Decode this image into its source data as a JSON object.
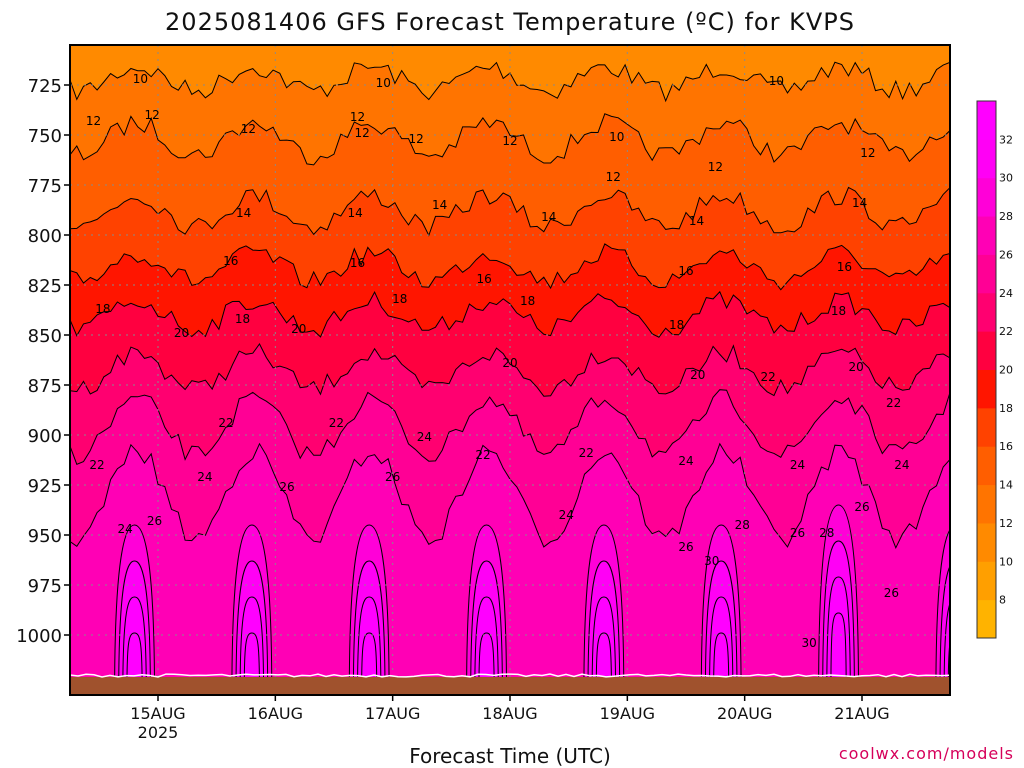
{
  "chart_data": {
    "type": "heatmap",
    "title": "2025081406 GFS Forecast Temperature (ºC) for KVPS",
    "xlabel": "Forecast Time (UTC)",
    "credit": "coolwx.com/models",
    "y_ticks": [
      725,
      750,
      775,
      800,
      825,
      850,
      875,
      900,
      925,
      950,
      975,
      1000
    ],
    "ylim": [
      1030,
      705
    ],
    "x_ticks": [
      {
        "label": "15AUG",
        "sublabel": "2025",
        "x": 15
      },
      {
        "label": "16AUG",
        "sublabel": "",
        "x": 16
      },
      {
        "label": "17AUG",
        "sublabel": "",
        "x": 17
      },
      {
        "label": "18AUG",
        "sublabel": "",
        "x": 18
      },
      {
        "label": "19AUG",
        "sublabel": "",
        "x": 19
      },
      {
        "label": "20AUG",
        "sublabel": "",
        "x": 20
      },
      {
        "label": "21AUG",
        "sublabel": "",
        "x": 21
      }
    ],
    "xlim": [
      14.25,
      21.75
    ],
    "grid": true,
    "colorbar": {
      "labels": [
        8,
        10,
        12,
        14,
        16,
        18,
        20,
        22,
        24,
        26,
        28,
        30,
        32
      ],
      "colors": [
        "#ffb300",
        "#ff9f00",
        "#ff8a00",
        "#ff7400",
        "#ff5e00",
        "#ff4200",
        "#ff1500",
        "#ff0040",
        "#ff0070",
        "#ff0095",
        "#ff00b5",
        "#ff00d8",
        "#ff00f5",
        "#ff00ff"
      ]
    },
    "contour_levels": [
      10,
      12,
      14,
      16,
      18,
      20,
      22,
      24,
      26,
      28,
      30
    ],
    "contour_labels": [
      {
        "text": "10",
        "x": 14.85,
        "p": 722
      },
      {
        "text": "10",
        "x": 16.92,
        "p": 724
      },
      {
        "text": "10",
        "x": 18.91,
        "p": 751
      },
      {
        "text": "10",
        "x": 20.27,
        "p": 723
      },
      {
        "text": "12",
        "x": 14.45,
        "p": 743
      },
      {
        "text": "12",
        "x": 14.95,
        "p": 740
      },
      {
        "text": "12",
        "x": 15.77,
        "p": 747
      },
      {
        "text": "12",
        "x": 16.7,
        "p": 741
      },
      {
        "text": "12",
        "x": 16.74,
        "p": 749
      },
      {
        "text": "12",
        "x": 17.2,
        "p": 752
      },
      {
        "text": "12",
        "x": 18.0,
        "p": 753
      },
      {
        "text": "12",
        "x": 18.88,
        "p": 771
      },
      {
        "text": "12",
        "x": 19.75,
        "p": 766
      },
      {
        "text": "12",
        "x": 21.05,
        "p": 759
      },
      {
        "text": "14",
        "x": 15.73,
        "p": 789
      },
      {
        "text": "14",
        "x": 16.68,
        "p": 789
      },
      {
        "text": "14",
        "x": 17.4,
        "p": 785
      },
      {
        "text": "14",
        "x": 18.33,
        "p": 791
      },
      {
        "text": "14",
        "x": 19.59,
        "p": 793
      },
      {
        "text": "14",
        "x": 20.98,
        "p": 784
      },
      {
        "text": "16",
        "x": 15.62,
        "p": 813
      },
      {
        "text": "16",
        "x": 16.7,
        "p": 814
      },
      {
        "text": "16",
        "x": 17.78,
        "p": 822
      },
      {
        "text": "16",
        "x": 19.5,
        "p": 818
      },
      {
        "text": "16",
        "x": 20.85,
        "p": 816
      },
      {
        "text": "18",
        "x": 14.53,
        "p": 837
      },
      {
        "text": "18",
        "x": 15.72,
        "p": 842
      },
      {
        "text": "18",
        "x": 17.06,
        "p": 832
      },
      {
        "text": "18",
        "x": 18.15,
        "p": 833
      },
      {
        "text": "18",
        "x": 19.42,
        "p": 845
      },
      {
        "text": "18",
        "x": 20.8,
        "p": 838
      },
      {
        "text": "20",
        "x": 15.2,
        "p": 849
      },
      {
        "text": "20",
        "x": 16.2,
        "p": 847
      },
      {
        "text": "20",
        "x": 18.0,
        "p": 864
      },
      {
        "text": "20",
        "x": 19.6,
        "p": 870
      },
      {
        "text": "20",
        "x": 20.95,
        "p": 866
      },
      {
        "text": "22",
        "x": 20.2,
        "p": 871
      },
      {
        "text": "22",
        "x": 15.58,
        "p": 894
      },
      {
        "text": "22",
        "x": 16.52,
        "p": 894
      },
      {
        "text": "22",
        "x": 17.77,
        "p": 910
      },
      {
        "text": "22",
        "x": 18.65,
        "p": 909
      },
      {
        "text": "22",
        "x": 21.27,
        "p": 884
      },
      {
        "text": "22",
        "x": 14.48,
        "p": 915
      },
      {
        "text": "24",
        "x": 17.27,
        "p": 901
      },
      {
        "text": "24",
        "x": 15.4,
        "p": 921
      },
      {
        "text": "24",
        "x": 19.5,
        "p": 913
      },
      {
        "text": "24",
        "x": 20.45,
        "p": 915
      },
      {
        "text": "24",
        "x": 21.34,
        "p": 915
      },
      {
        "text": "24",
        "x": 14.72,
        "p": 947
      },
      {
        "text": "24",
        "x": 18.48,
        "p": 940
      },
      {
        "text": "26",
        "x": 14.97,
        "p": 943
      },
      {
        "text": "26",
        "x": 16.1,
        "p": 926
      },
      {
        "text": "26",
        "x": 17.0,
        "p": 921
      },
      {
        "text": "26",
        "x": 19.5,
        "p": 956
      },
      {
        "text": "26",
        "x": 20.45,
        "p": 949
      },
      {
        "text": "26",
        "x": 21.0,
        "p": 936
      },
      {
        "text": "26",
        "x": 21.25,
        "p": 979
      },
      {
        "text": "28",
        "x": 19.98,
        "p": 945
      },
      {
        "text": "28",
        "x": 20.7,
        "p": 949
      },
      {
        "text": "30",
        "x": 19.72,
        "p": 963
      },
      {
        "text": "30",
        "x": 20.55,
        "p": 1004
      }
    ]
  }
}
